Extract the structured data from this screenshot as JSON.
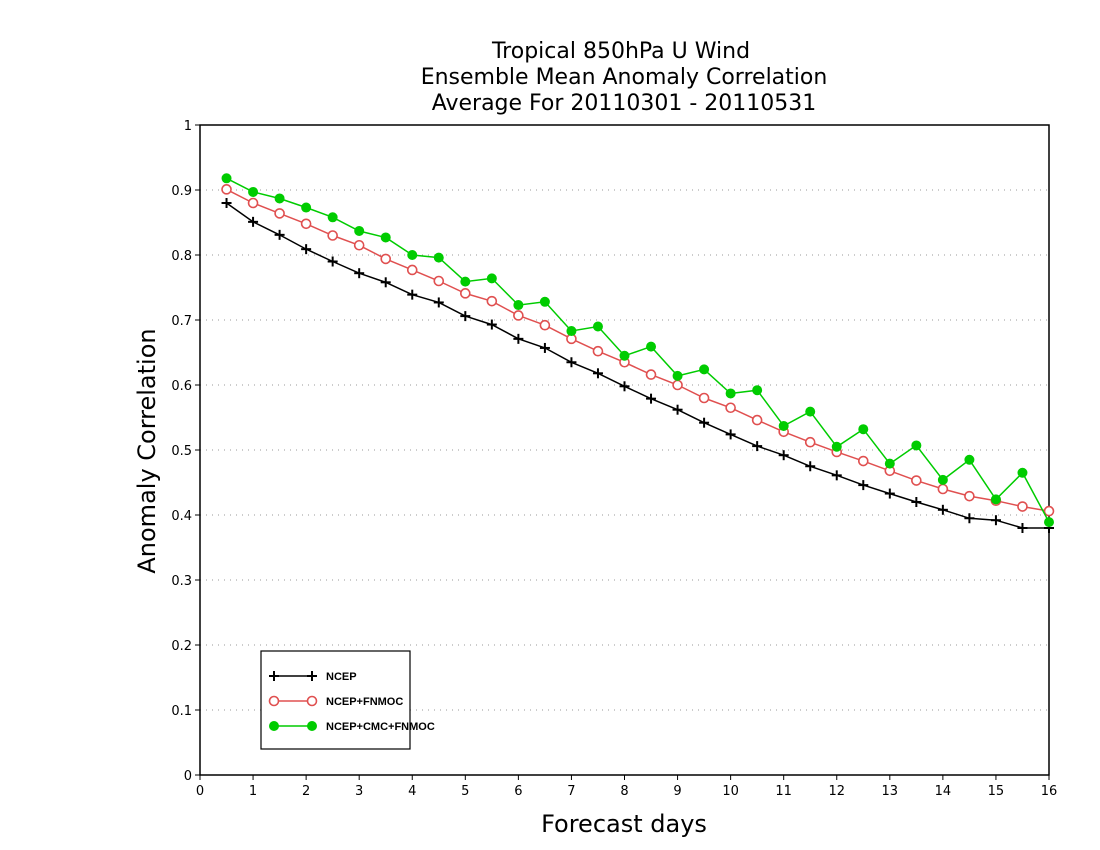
{
  "chart_data": {
    "type": "line",
    "title": [
      "Tropical 850hPa U Wind",
      "Ensemble Mean Anomaly Correlation",
      "Average For 20110301 - 20110531"
    ],
    "xlabel": "Forecast days",
    "ylabel": "Anomaly Correlation",
    "xlim": [
      0,
      16
    ],
    "ylim": [
      0,
      1
    ],
    "xticks": [
      "0",
      "1",
      "2",
      "3",
      "4",
      "5",
      "6",
      "7",
      "8",
      "9",
      "10",
      "11",
      "12",
      "13",
      "14",
      "15",
      "16"
    ],
    "yticks": [
      "0",
      "0.1",
      "0.2",
      "0.3",
      "0.4",
      "0.5",
      "0.6",
      "0.7",
      "0.8",
      "0.9",
      "1"
    ],
    "grid": "horizontal dotted",
    "legend_position": "bottom-left",
    "x": [
      0.5,
      1,
      1.5,
      2,
      2.5,
      3,
      3.5,
      4,
      4.5,
      5,
      5.5,
      6,
      6.5,
      7,
      7.5,
      8,
      8.5,
      9,
      9.5,
      10,
      10.5,
      11,
      11.5,
      12,
      12.5,
      13,
      13.5,
      14,
      14.5,
      15,
      15.5,
      16
    ],
    "series": [
      {
        "name": "NCEP",
        "color": "#000000",
        "marker": "plus",
        "values": [
          0.88,
          0.851,
          0.831,
          0.809,
          0.79,
          0.772,
          0.758,
          0.739,
          0.727,
          0.706,
          0.693,
          0.671,
          0.657,
          0.635,
          0.618,
          0.598,
          0.579,
          0.562,
          0.542,
          0.524,
          0.506,
          0.492,
          0.475,
          0.461,
          0.446,
          0.433,
          0.42,
          0.408,
          0.395,
          0.392,
          0.38,
          0.38
        ]
      },
      {
        "name": "NCEP+FNMOC",
        "color": "#e05050",
        "marker": "open-circle",
        "values": [
          0.901,
          0.88,
          0.864,
          0.848,
          0.83,
          0.815,
          0.794,
          0.777,
          0.76,
          0.741,
          0.729,
          0.707,
          0.692,
          0.671,
          0.652,
          0.635,
          0.616,
          0.6,
          0.58,
          0.565,
          0.546,
          0.528,
          0.512,
          0.497,
          0.483,
          0.468,
          0.453,
          0.44,
          0.429,
          0.422,
          0.413,
          0.406
        ]
      },
      {
        "name": "NCEP+CMC+FNMOC",
        "color": "#00cc00",
        "marker": "filled-circle",
        "values": [
          0.918,
          0.897,
          0.887,
          0.873,
          0.858,
          0.837,
          0.827,
          0.8,
          0.796,
          0.759,
          0.764,
          0.723,
          0.728,
          0.683,
          0.69,
          0.645,
          0.659,
          0.614,
          0.624,
          0.587,
          0.592,
          0.537,
          0.559,
          0.505,
          0.532,
          0.479,
          0.507,
          0.454,
          0.485,
          0.424,
          0.465,
          0.389
        ]
      }
    ]
  }
}
